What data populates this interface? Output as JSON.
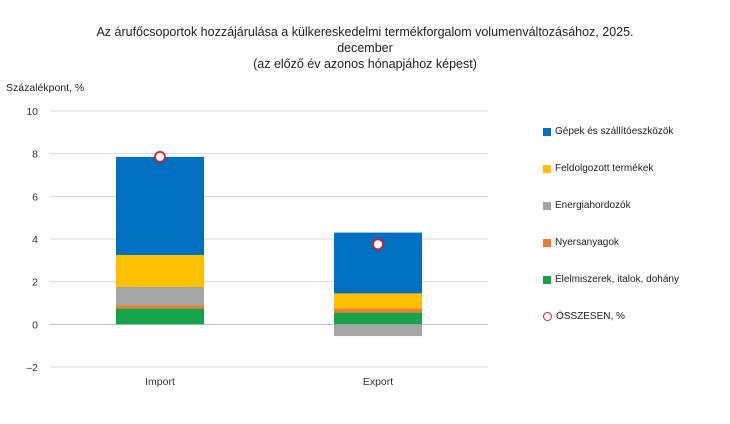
{
  "chart_data": {
    "type": "bar",
    "stacked": true,
    "title_lines": [
      "Az árufőcsoportok hozzájárulása a külkereskedelmi  termékforgalom volumenváltozásához, 2025.",
      "december",
      "(az előző év azonos hónapjához képest)"
    ],
    "ylabel": "Százalékpont, %",
    "categories": [
      "Import",
      "Export"
    ],
    "ylim": [
      -2,
      10
    ],
    "yticks": [
      -2,
      0,
      2,
      4,
      6,
      8,
      10
    ],
    "ytick_labels": [
      "–2",
      "0",
      "2",
      "4",
      "6",
      "8",
      "10"
    ],
    "series": [
      {
        "name": "Élelmiszerek, italok, dohány",
        "color": "#16a34a",
        "values": [
          0.75,
          0.55
        ]
      },
      {
        "name": "Nyersanyagok",
        "color": "#ed7d31",
        "values": [
          0.15,
          0.2
        ]
      },
      {
        "name": "Energiahordozók",
        "color": "#a5a5a5",
        "values": [
          0.85,
          -0.55
        ]
      },
      {
        "name": "Feldolgozott termékek",
        "color": "#ffc000",
        "values": [
          1.5,
          0.7
        ]
      },
      {
        "name": "Gépek és szállítóeszközök",
        "color": "#0070c0",
        "values": [
          4.6,
          2.85
        ]
      }
    ],
    "total": {
      "name": "ÖSSZESEN, %",
      "color": "#d11f2c",
      "values": [
        7.85,
        3.75
      ]
    },
    "legend_order": [
      "Gépek és szállítóeszközök",
      "Feldolgozott termékek",
      "Energiahordozók",
      "Nyersanyagok",
      "Élelmiszerek, italok, dohány",
      "ÖSSZESEN, %"
    ],
    "grid": true,
    "legend_position": "right"
  }
}
